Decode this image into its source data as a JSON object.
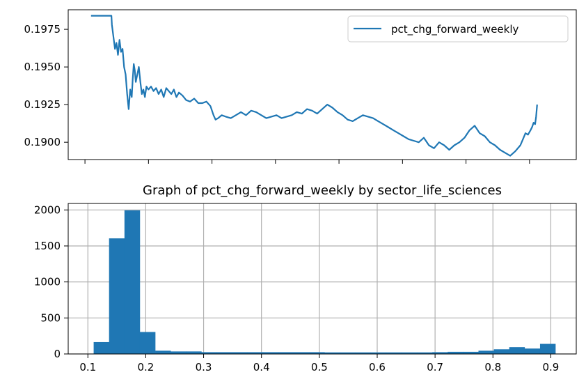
{
  "chart_data": [
    {
      "type": "line",
      "title": "",
      "xlabel": "",
      "ylabel": "",
      "legend": {
        "entries": [
          "pct_chg_forward_weekly"
        ],
        "placement": "top-right"
      },
      "grid": false,
      "x_tick_labels_visible": false,
      "yticks": [
        0.19,
        0.1925,
        0.195,
        0.1975
      ],
      "ytick_labels": [
        "0.1900",
        "0.1925",
        "0.1950",
        "0.1975"
      ],
      "ylim": [
        0.18885,
        0.1988
      ],
      "xlim": [
        0,
        100
      ],
      "x_ticks_positions": [
        3.3,
        15.8,
        28.3,
        40.8,
        53.3,
        65.8,
        78.3,
        90.8
      ],
      "color": "#1f77b4",
      "series": [
        {
          "name": "pct_chg_forward_weekly",
          "x": [
            4.5,
            8.5,
            8.6,
            8.9,
            9.2,
            9.5,
            9.8,
            10.1,
            10.4,
            10.7,
            11.0,
            11.3,
            11.6,
            11.9,
            12.2,
            12.5,
            12.7,
            12.9,
            13.1,
            13.3,
            13.6,
            13.9,
            14.2,
            14.5,
            14.8,
            15.1,
            15.4,
            15.8,
            16.3,
            16.8,
            17.3,
            17.8,
            18.3,
            18.8,
            19.3,
            19.8,
            20.3,
            20.8,
            21.3,
            21.8,
            22.5,
            23.2,
            24.0,
            24.8,
            25.6,
            26.4,
            27.2,
            28.0,
            28.6,
            29.0,
            29.5,
            30.2,
            31.0,
            32.0,
            33.0,
            34.0,
            35.0,
            36.0,
            37.0,
            38.0,
            39.0,
            40.0,
            41.0,
            42.0,
            43.0,
            44.0,
            45.0,
            46.0,
            47.0,
            48.0,
            49.0,
            50.0,
            51.0,
            52.0,
            53.0,
            54.0,
            55.0,
            56.0,
            57.0,
            58.0,
            59.0,
            60.0,
            61.0,
            62.0,
            63.0,
            64.0,
            65.0,
            66.0,
            67.0,
            68.0,
            69.0,
            70.0,
            71.0,
            72.0,
            73.0,
            74.0,
            75.0,
            76.0,
            77.0,
            78.0,
            79.0,
            80.0,
            81.0,
            82.0,
            83.0,
            84.0,
            85.0,
            86.0,
            87.0,
            88.0,
            89.0,
            89.5,
            90.0,
            90.5,
            91.0,
            91.3,
            91.6,
            91.9,
            92.1,
            92.3
          ],
          "values": [
            0.1984,
            0.1984,
            0.1978,
            0.197,
            0.1962,
            0.1966,
            0.1958,
            0.1968,
            0.196,
            0.1962,
            0.195,
            0.1945,
            0.1932,
            0.1922,
            0.1935,
            0.193,
            0.1942,
            0.1952,
            0.1948,
            0.194,
            0.1945,
            0.195,
            0.194,
            0.1932,
            0.1935,
            0.193,
            0.1937,
            0.1935,
            0.1937,
            0.1934,
            0.1936,
            0.1932,
            0.1935,
            0.193,
            0.1936,
            0.1934,
            0.1932,
            0.1935,
            0.193,
            0.1933,
            0.1931,
            0.1928,
            0.1927,
            0.1929,
            0.1926,
            0.1926,
            0.1927,
            0.1924,
            0.1918,
            0.1915,
            0.1916,
            0.1918,
            0.1917,
            0.1916,
            0.1918,
            0.192,
            0.1918,
            0.1921,
            0.192,
            0.1918,
            0.1916,
            0.1917,
            0.1918,
            0.1916,
            0.1917,
            0.1918,
            0.192,
            0.1919,
            0.1922,
            0.1921,
            0.1919,
            0.1922,
            0.1925,
            0.1923,
            0.192,
            0.1918,
            0.1915,
            0.1914,
            0.1916,
            0.1918,
            0.1917,
            0.1916,
            0.1914,
            0.1912,
            0.191,
            0.1908,
            0.1906,
            0.1904,
            0.1902,
            0.1901,
            0.19,
            0.1903,
            0.1898,
            0.1896,
            0.19,
            0.1898,
            0.1895,
            0.1898,
            0.19,
            0.1903,
            0.1908,
            0.1911,
            0.1906,
            0.1904,
            0.19,
            0.1898,
            0.1895,
            0.1893,
            0.1891,
            0.1894,
            0.1898,
            0.1902,
            0.1906,
            0.1905,
            0.1908,
            0.191,
            0.1913,
            0.1912,
            0.1917,
            0.1925
          ]
        }
      ]
    },
    {
      "type": "bar",
      "title": "Graph of pct_chg_forward_weekly by sector_life_sciences",
      "xlabel": "",
      "ylabel": "",
      "grid": true,
      "xlim": [
        0.066,
        0.944
      ],
      "ylim": [
        0,
        2090
      ],
      "xticks": [
        0.1,
        0.2,
        0.3,
        0.4,
        0.5,
        0.6,
        0.7,
        0.8,
        0.9
      ],
      "xtick_labels": [
        "0.1",
        "0.2",
        "0.3",
        "0.4",
        "0.5",
        "0.6",
        "0.7",
        "0.8",
        "0.9"
      ],
      "yticks": [
        0,
        500,
        1000,
        1500,
        2000
      ],
      "ytick_labels": [
        "0",
        "500",
        "1000",
        "1500",
        "2000"
      ],
      "bin_start": 0.11,
      "bin_width": 0.0266,
      "values": [
        165,
        1605,
        1995,
        305,
        45,
        35,
        35,
        25,
        25,
        25,
        25,
        25,
        25,
        25,
        25,
        22,
        22,
        22,
        22,
        22,
        22,
        22,
        25,
        30,
        30,
        45,
        65,
        95,
        75,
        140
      ],
      "color": "#1f77b4"
    }
  ]
}
